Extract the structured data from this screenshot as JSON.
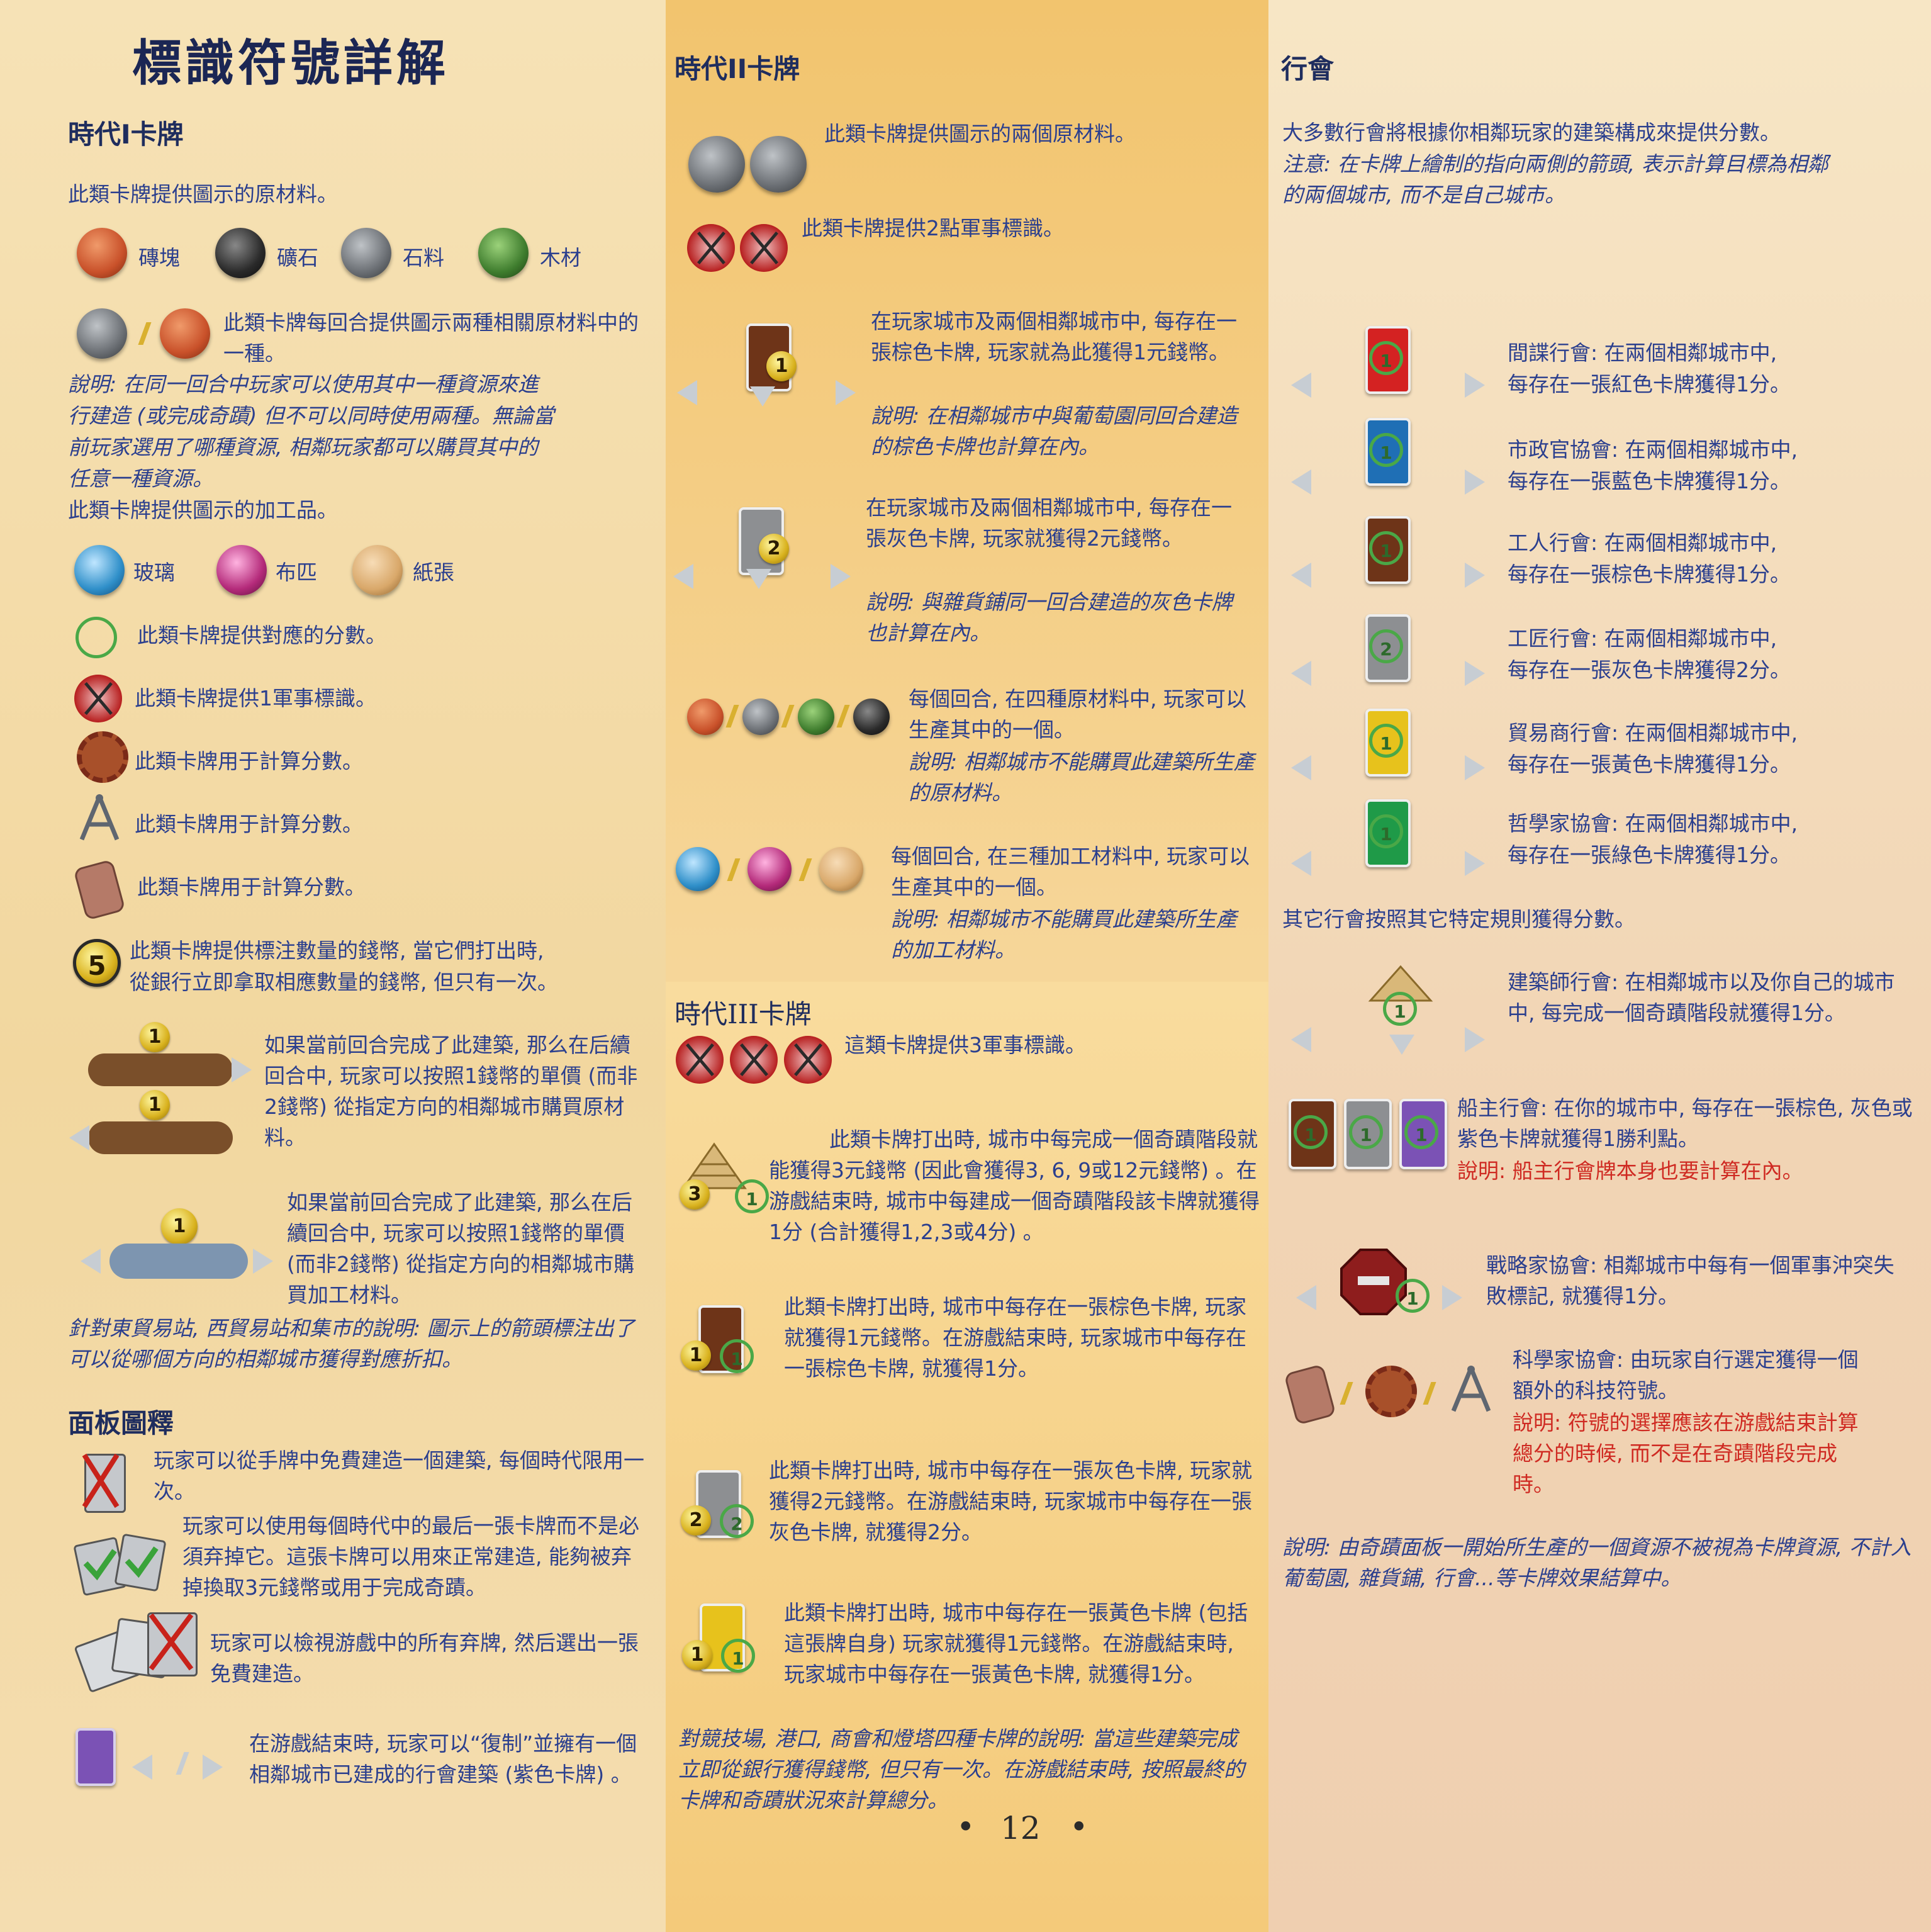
{
  "left": {
    "title": "標識符號詳解",
    "age1_heading": "時代I卡牌",
    "raw_intro": "此類卡牌提供圖示的原材料。",
    "resources": [
      {
        "label": "磚塊",
        "color": "#c9512a"
      },
      {
        "label": "礦石",
        "color": "#2a2a2a"
      },
      {
        "label": "石料",
        "color": "#6b6f74"
      },
      {
        "label": "木材",
        "color": "#3f7d2e"
      }
    ],
    "choice_text": "此類卡牌每回合提供圖示兩種相關原材料中的一種。",
    "choice_note_line1": "說明: 在同一回合中玩家可以使用其中一種資源來進",
    "choice_note_line2": "行建造 (或完成奇蹟) 但不可以同時使用兩種。無論當",
    "choice_note_line3": "前玩家選用了哪種資源, 相鄰玩家都可以購買其中的",
    "choice_note_line4": "任意一種資源。",
    "manu_intro": "此類卡牌提供圖示的加工品。",
    "goods": [
      {
        "label": "玻璃",
        "color": "#2f8fc9"
      },
      {
        "label": "布匹",
        "color": "#b42a7a"
      },
      {
        "label": "紙張",
        "color": "#d9a86a"
      }
    ],
    "laurel_text": "此類卡牌提供對應的分數。",
    "shield_text": "此類卡牌提供1軍事標識。",
    "gear_text": "此類卡牌用于計算分數。",
    "compass_text": "此類卡牌用于計算分數。",
    "tablet_text": "此類卡牌用于計算分數。",
    "coin_value": "5",
    "coin_text_line1": "此類卡牌提供標注數量的錢幣, 當它們打出時,",
    "coin_text_line2": "從銀行立即拿取相應數量的錢幣, 但只有一次。",
    "trade_coin": "1",
    "trade_raw_text": "如果當前回合完成了此建築, 那么在后續回合中, 玩家可以按照1錢幣的單價 (而非2錢幣) 從指定方向的相鄰城市購買原材料。",
    "trade_manu_text": "如果當前回合完成了此建築, 那么在后續回合中, 玩家可以按照1錢幣的單價 (而非2錢幣) 從指定方向的相鄰城市購買加工材料。",
    "trade_note": "針對東貿易站, 西貿易站和集市的說明: 圖示上的箭頭標注出了可以從哪個方向的相鄰城市獲得對應折扣。",
    "board_heading": "面板圖釋",
    "board_items": [
      "玩家可以從手牌中免費建造一個建築, 每個時代限用一次。",
      "玩家可以使用每個時代中的最后一張卡牌而不是必須弃掉它。這張卡牌可以用來正常建造, 能夠被弃掉換取3元錢幣或用于完成奇蹟。",
      "玩家可以檢視游戲中的所有弃牌, 然后選出一張免費建造。",
      "在游戲結束時, 玩家可以“復制”並擁有一個相鄰城市已建成的行會建築 (紫色卡牌) 。"
    ]
  },
  "middle": {
    "age2_heading": "時代II卡牌",
    "two_raw_text": "此類卡牌提供圖示的兩個原材料。",
    "two_shield_text": "此類卡牌提供2點軍事標識。",
    "brown_coin": "1",
    "brown_text": "在玩家城市及兩個相鄰城市中, 每存在一張棕色卡牌, 玩家就為此獲得1元錢幣。",
    "brown_note": "說明: 在相鄰城市中與葡萄園同回合建造的棕色卡牌也計算在內。",
    "grey_coin": "2",
    "grey_text": "在玩家城市及兩個相鄰城市中, 每存在一張灰色卡牌, 玩家就獲得2元錢幣。",
    "grey_note": "說明: 與雜貨鋪同一回合建造的灰色卡牌也計算在內。",
    "any_raw_text": "每個回合, 在四種原材料中, 玩家可以生產其中的一個。",
    "any_raw_note": "說明: 相鄰城市不能購買此建築所生產的原材料。",
    "any_manu_text": "每個回合, 在三種加工材料中, 玩家可以生產其中的一個。",
    "any_manu_note": "說明: 相鄰城市不能購買此建築所生產的加工材料。",
    "age3_heading": "時代III卡牌",
    "three_shield_text": "這類卡牌提供3軍事標識。",
    "wonder_coin": "3",
    "wonder_lau": "1",
    "wonder_text": "此類卡牌打出時, 城市中每完成一個奇蹟階段就能獲得3元錢幣 (因此會獲得3, 6, 9或12元錢幣) 。在游戲結束時, 城市中每建成一個奇蹟階段該卡牌就獲得1分 (合計獲得1,2,3或4分) 。",
    "brown3_coin": "1",
    "brown3_lau": "1",
    "brown3_text": "此類卡牌打出時, 城市中每存在一張棕色卡牌, 玩家就獲得1元錢幣。在游戲結束時, 玩家城市中每存在一張棕色卡牌, 就獲得1分。",
    "grey3_coin": "2",
    "grey3_lau": "2",
    "grey3_text": "此類卡牌打出時, 城市中每存在一張灰色卡牌, 玩家就獲得2元錢幣。在游戲結束時, 玩家城市中每存在一張灰色卡牌, 就獲得2分。",
    "yellow3_coin": "1",
    "yellow3_lau": "1",
    "yellow3_text": "此類卡牌打出時, 城市中每存在一張黃色卡牌 (包括這張牌自身) 玩家就獲得1元錢幣。在游戲結束時, 玩家城市中每存在一張黃色卡牌, 就獲得1分。",
    "age3_note": "對競技場, 港口, 商會和燈塔四種卡牌的說明: 當這些建築完成立即從銀行獲得錢幣, 但只有一次。在游戲結束時, 按照最終的卡牌和奇蹟狀況來計算總分。",
    "page_number": "12"
  },
  "right": {
    "heading": "行會",
    "intro": "大多數行會將根據你相鄰玩家的建築構成來提供分數。",
    "intro_note": "注意: 在卡牌上繪制的指向兩側的箭頭, 表示計算目標為相鄰的兩個城市, 而不是自己城市。",
    "guilds": [
      {
        "value": "1",
        "color": "#d42222",
        "line1": "間諜行會: 在兩個相鄰城市中,",
        "line2": "每存在一張紅色卡牌獲得1分。"
      },
      {
        "value": "1",
        "color": "#1f6fb5",
        "line1": "市政官協會: 在兩個相鄰城市中,",
        "line2": "每存在一張藍色卡牌獲得1分。"
      },
      {
        "value": "1",
        "color": "#6e3418",
        "line1": "工人行會: 在兩個相鄰城市中,",
        "line2": "每存在一張棕色卡牌獲得1分。"
      },
      {
        "value": "2",
        "color": "#8d8f92",
        "line1": "工匠行會: 在兩個相鄰城市中,",
        "line2": "每存在一張灰色卡牌獲得2分。"
      },
      {
        "value": "1",
        "color": "#e7c21c",
        "line1": "貿易商行會: 在兩個相鄰城市中,",
        "line2": "每存在一張黃色卡牌獲得1分。"
      },
      {
        "value": "1",
        "color": "#1f9a48",
        "line1": "哲學家協會: 在兩個相鄰城市中,",
        "line2": "每存在一張綠色卡牌獲得1分。"
      }
    ],
    "other_rules": "其它行會按照其它特定規則獲得分數。",
    "builders_lau": "1",
    "builders_text": "建築師行會: 在相鄰城市以及你自己的城市中, 每完成一個奇蹟階段就獲得1分。",
    "shipowners_values": [
      "1",
      "1",
      "1"
    ],
    "shipowners_text": "船主行會: 在你的城市中, 每存在一張棕色, 灰色或紫色卡牌就獲得1勝利點。",
    "shipowners_note": "說明: 船主行會牌本身也要計算在內。",
    "strategists_lau": "1",
    "strategists_text": "戰略家協會: 相鄰城市中每有一個軍事沖突失敗標記, 就獲得1分。",
    "scientists_text": "科學家協會: 由玩家自行選定獲得一個額外的科技符號。",
    "scientists_note": "說明: 符號的選擇應該在游戲結束計算總分的時候, 而不是在奇蹟階段完成時。",
    "final_note": "說明: 由奇蹟面板一開始所生產的一個資源不被視為卡牌資源, 不計入葡萄園, 雜貨鋪, 行會...等卡牌效果結算中。"
  }
}
